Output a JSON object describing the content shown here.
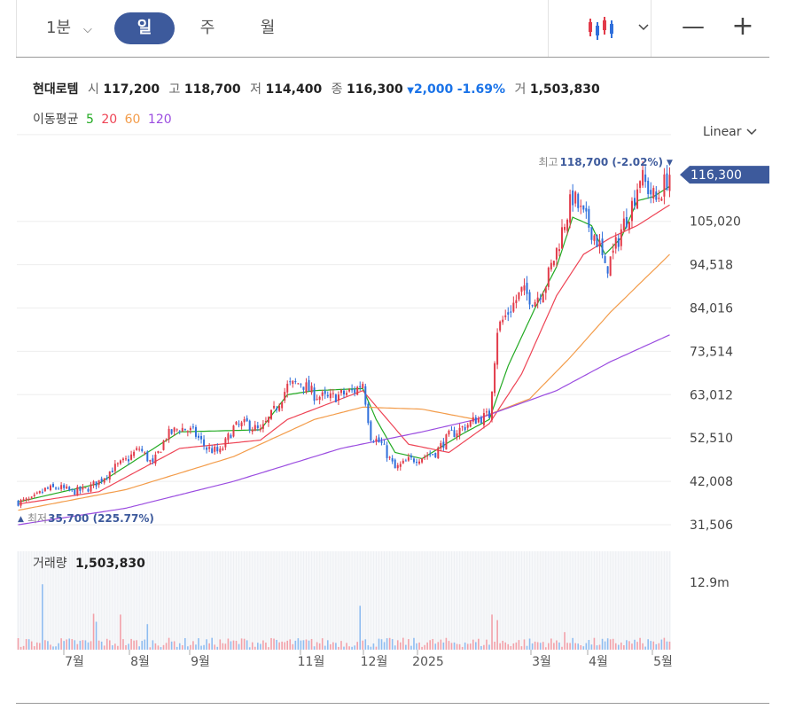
{
  "toolbar": {
    "interval_1m": "1분",
    "day": "일",
    "week": "주",
    "month": "월"
  },
  "stock": {
    "name": "현대로템",
    "open_label": "시",
    "open": "117,200",
    "high_label": "고",
    "high": "118,700",
    "low_label": "저",
    "low": "114,400",
    "close_label": "종",
    "close": "116,300",
    "change_arrow": "▼",
    "change": "2,000",
    "change_pct": "-1.69%",
    "volume_label": "거",
    "volume": "1,503,830"
  },
  "moving_average": {
    "label": "이동평균",
    "periods": [
      "5",
      "20",
      "60",
      "120"
    ],
    "colors": [
      "#22aa22",
      "#ee4455",
      "#f39c4a",
      "#9b4de0"
    ]
  },
  "scale": {
    "label": "Linear"
  },
  "chart_data": {
    "type": "candlestick",
    "y_ticks": [
      "105,020",
      "94,518",
      "84,016",
      "73,514",
      "63,012",
      "52,510",
      "42,008",
      "31,506"
    ],
    "y_tick_values": [
      105020,
      94518,
      84016,
      73514,
      63012,
      52510,
      42008,
      31506
    ],
    "current_price_label": "116,300",
    "current_price": 116300,
    "high_marker": {
      "label": "최고",
      "value": "118,700 (-2.02%)",
      "arrow": "▼"
    },
    "low_marker": {
      "label": "최저",
      "value": "35,700 (225.77%)",
      "arrow": "▲"
    },
    "x_ticks": [
      "7월",
      "8월",
      "9월",
      "11월",
      "12월",
      "2025",
      "3월",
      "4월",
      "5월"
    ],
    "volume_label": "거래량",
    "volume_value": "1,503,830",
    "volume_axis_label": "12.9m",
    "price_anchors": [
      [
        0,
        37000
      ],
      [
        5,
        37500
      ],
      [
        10,
        40000
      ],
      [
        15,
        40500
      ],
      [
        20,
        39500
      ],
      [
        25,
        40000
      ],
      [
        30,
        42000
      ],
      [
        35,
        45000
      ],
      [
        40,
        47000
      ],
      [
        45,
        50000
      ],
      [
        50,
        46000
      ],
      [
        55,
        53000
      ],
      [
        60,
        55000
      ],
      [
        65,
        54000
      ],
      [
        70,
        50000
      ],
      [
        75,
        49000
      ],
      [
        80,
        55000
      ],
      [
        85,
        56000
      ],
      [
        90,
        54000
      ],
      [
        95,
        59000
      ],
      [
        100,
        65000
      ],
      [
        105,
        66000
      ],
      [
        110,
        63000
      ],
      [
        115,
        62000
      ],
      [
        120,
        63000
      ],
      [
        125,
        64000
      ],
      [
        128,
        66000
      ],
      [
        131,
        53000
      ],
      [
        135,
        51000
      ],
      [
        140,
        45000
      ],
      [
        145,
        47000
      ],
      [
        150,
        48000
      ],
      [
        155,
        49000
      ],
      [
        160,
        53000
      ],
      [
        165,
        55000
      ],
      [
        170,
        57000
      ],
      [
        175,
        58000
      ],
      [
        178,
        79000
      ],
      [
        182,
        83000
      ],
      [
        187,
        88000
      ],
      [
        192,
        86000
      ],
      [
        196,
        90000
      ],
      [
        200,
        98000
      ],
      [
        203,
        105000
      ],
      [
        206,
        111000
      ],
      [
        210,
        106000
      ],
      [
        213,
        103000
      ],
      [
        216,
        99000
      ],
      [
        218,
        93000
      ],
      [
        221,
        97000
      ],
      [
        224,
        103000
      ],
      [
        228,
        109000
      ],
      [
        231,
        116000
      ],
      [
        234,
        113000
      ],
      [
        237,
        110000
      ],
      [
        240,
        114000
      ],
      [
        242,
        116300
      ]
    ],
    "ma5_anchors": [
      [
        0,
        37000
      ],
      [
        30,
        41500
      ],
      [
        60,
        54000
      ],
      [
        90,
        54500
      ],
      [
        100,
        63000
      ],
      [
        110,
        64000
      ],
      [
        128,
        64500
      ],
      [
        133,
        57000
      ],
      [
        140,
        49000
      ],
      [
        150,
        47500
      ],
      [
        165,
        53500
      ],
      [
        175,
        57000
      ],
      [
        182,
        70000
      ],
      [
        192,
        84000
      ],
      [
        200,
        94000
      ],
      [
        206,
        106000
      ],
      [
        213,
        104000
      ],
      [
        218,
        97000
      ],
      [
        224,
        101000
      ],
      [
        230,
        110000
      ],
      [
        236,
        111000
      ],
      [
        242,
        113500
      ]
    ],
    "ma20_anchors": [
      [
        0,
        36500
      ],
      [
        30,
        39500
      ],
      [
        60,
        50000
      ],
      [
        90,
        52000
      ],
      [
        100,
        57000
      ],
      [
        128,
        64000
      ],
      [
        145,
        51000
      ],
      [
        160,
        49000
      ],
      [
        175,
        56000
      ],
      [
        187,
        68000
      ],
      [
        200,
        87000
      ],
      [
        210,
        97000
      ],
      [
        220,
        101000
      ],
      [
        230,
        104000
      ],
      [
        242,
        109000
      ]
    ],
    "ma60_anchors": [
      [
        0,
        35000
      ],
      [
        40,
        40000
      ],
      [
        80,
        48000
      ],
      [
        110,
        57000
      ],
      [
        128,
        60000
      ],
      [
        150,
        59500
      ],
      [
        170,
        57000
      ],
      [
        190,
        62000
      ],
      [
        205,
        72000
      ],
      [
        220,
        83000
      ],
      [
        242,
        97000
      ]
    ],
    "ma120_anchors": [
      [
        0,
        31500
      ],
      [
        40,
        35500
      ],
      [
        80,
        42000
      ],
      [
        120,
        50000
      ],
      [
        150,
        54000
      ],
      [
        170,
        57000
      ],
      [
        200,
        64000
      ],
      [
        220,
        71000
      ],
      [
        242,
        77500
      ]
    ]
  }
}
